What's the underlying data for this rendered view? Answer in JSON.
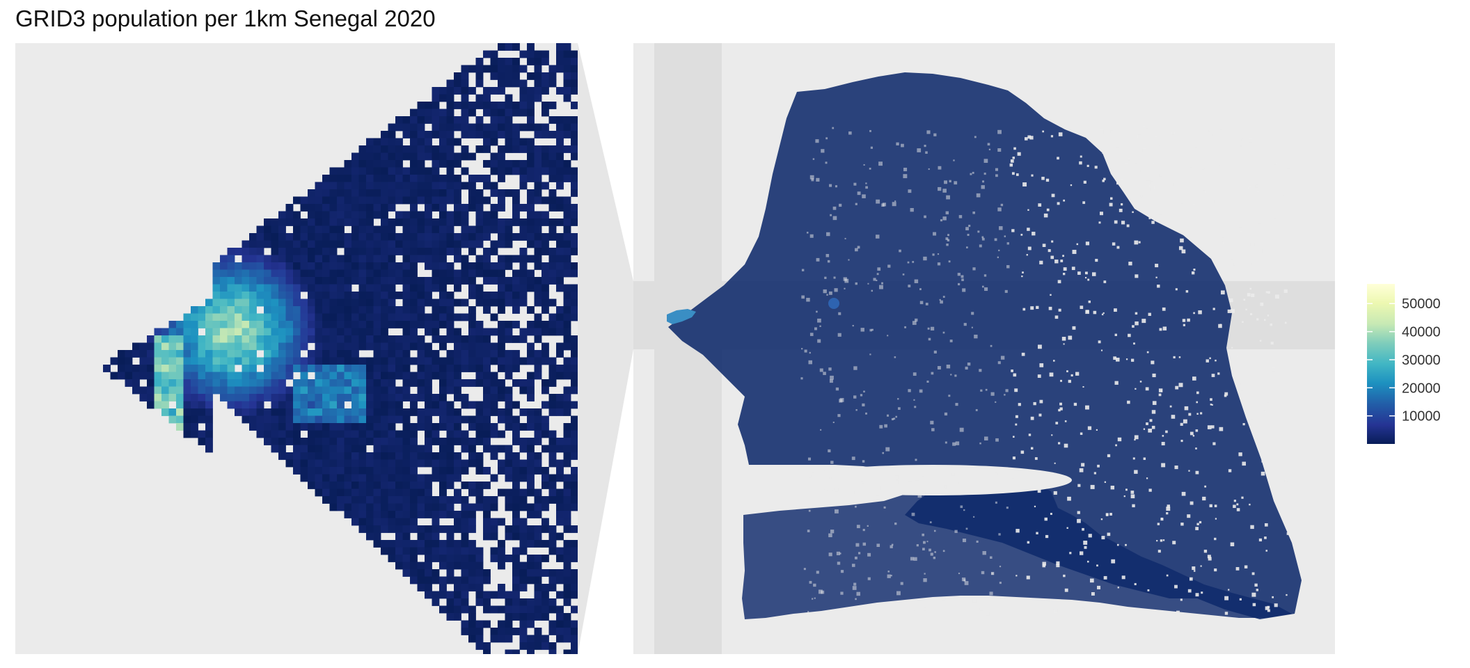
{
  "title": "GRID3 population per 1km Senegal 2020",
  "colors": {
    "panel_background": "#ebebeb",
    "highlight_band": "#dedede",
    "connector": "#e3e3e3",
    "low": "#0f2a6b",
    "high": "#f7fbc4"
  },
  "legend": {
    "min": 0,
    "max": 57000,
    "breaks": [
      10000,
      20000,
      30000,
      40000,
      50000
    ],
    "labels": [
      "10000",
      "20000",
      "30000",
      "40000",
      "50000"
    ],
    "colormap": [
      "#081d58",
      "#253494",
      "#225ea8",
      "#1d91c0",
      "#41b6c4",
      "#7fcdbb",
      "#c7e9b4",
      "#edf8b1",
      "#ffffd9"
    ]
  },
  "panels": {
    "inset": {
      "description_name": "zoomed-dakar-peninsula"
    },
    "overview": {
      "description_name": "senegal-overview"
    }
  }
}
